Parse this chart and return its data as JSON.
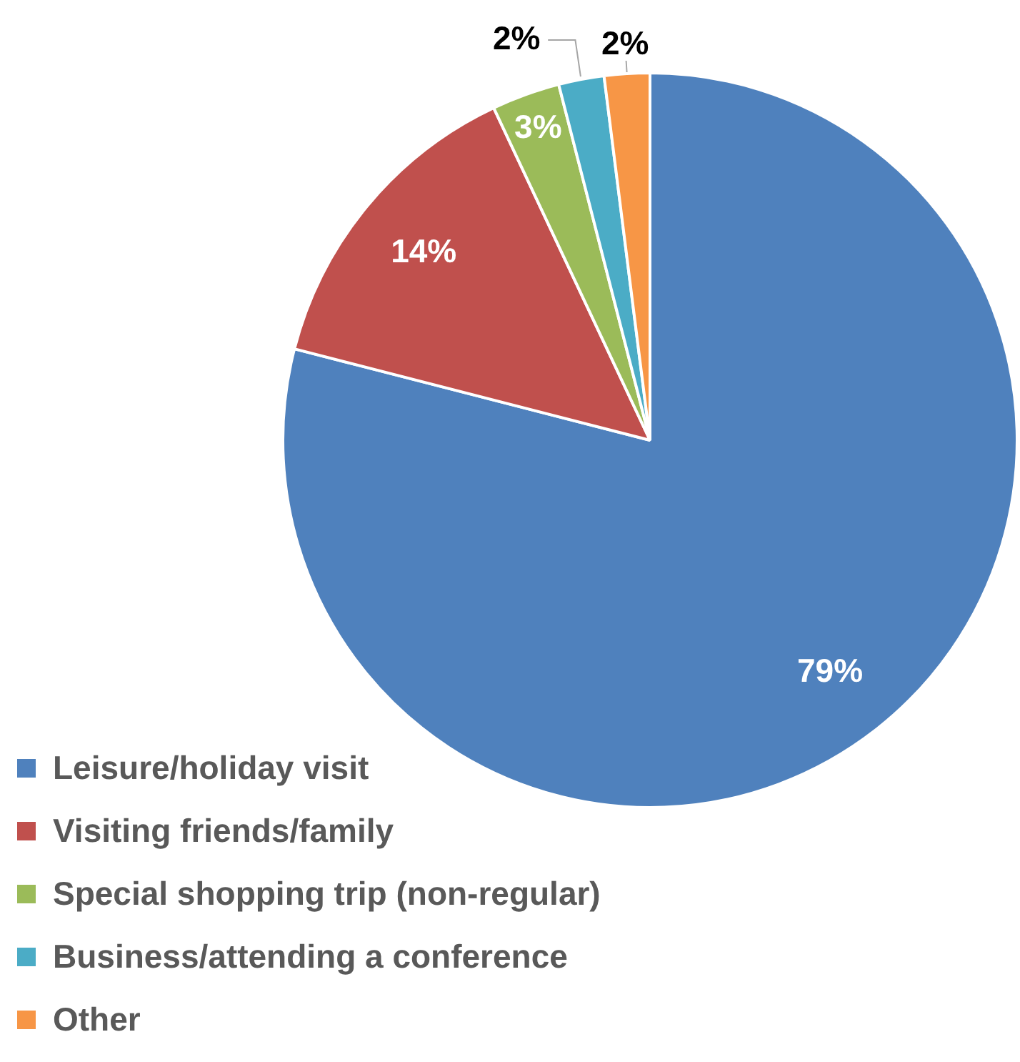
{
  "chart_data": {
    "type": "pie",
    "categories": [
      "Leisure/holiday visit",
      "Visiting friends/family",
      "Special shopping trip (non-regular)",
      "Business/attending a conference",
      "Other"
    ],
    "values": [
      79,
      14,
      3,
      2,
      2
    ],
    "value_labels": [
      "79%",
      "14%",
      "3%",
      "2%",
      "2%"
    ],
    "colors": [
      "#4f81bd",
      "#c0504d",
      "#9bbb59",
      "#4bacc6",
      "#f79646"
    ],
    "legend": "bottom left"
  }
}
